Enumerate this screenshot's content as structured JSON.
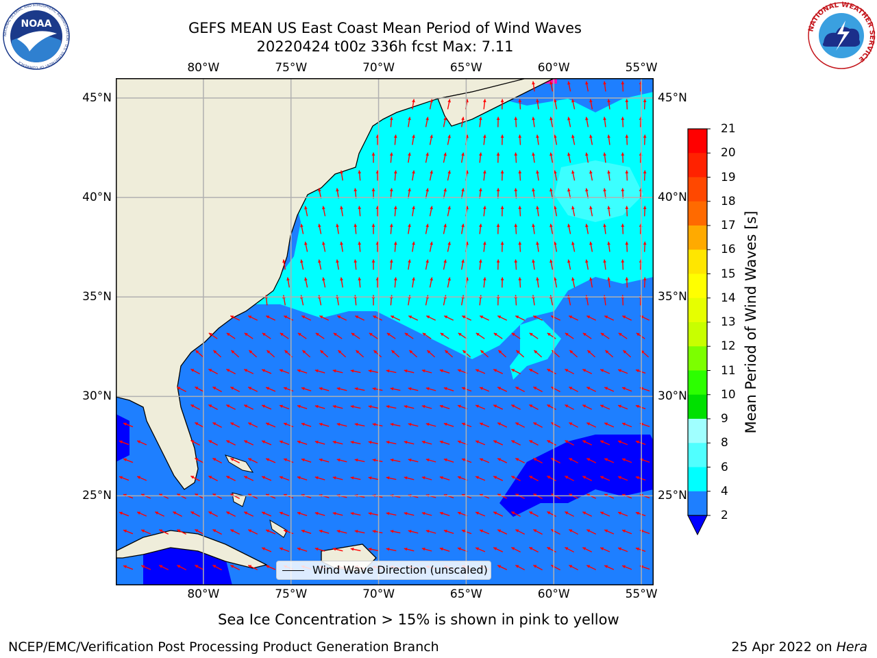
{
  "header": {
    "title_line1": "GEFS MEAN US East Coast Mean Period of Wind Waves",
    "title_line2": "20220424 t00z 336h fcst   Max: 7.11"
  },
  "logos": {
    "left_logo_text": "NOAA",
    "left_logo_ring_text": "NATIONAL OCEANIC AND ATMOSPHERIC ADMINISTRATION · U.S. DEPARTMENT OF COMMERCE",
    "right_logo_ring_text": "NATIONAL WEATHER SERVICE"
  },
  "map": {
    "lon_ticks": [
      "80°W",
      "75°W",
      "70°W",
      "65°W",
      "60°W",
      "55°W"
    ],
    "lat_ticks": [
      "45°N",
      "40°N",
      "35°N",
      "30°N",
      "25°N"
    ],
    "lon_values": [
      -80,
      -75,
      -70,
      -65,
      -60,
      -55
    ],
    "lat_values": [
      45,
      40,
      35,
      30,
      25
    ],
    "extent": {
      "lon_min": -85,
      "lon_max": -54.3,
      "lat_min": 20.5,
      "lat_max": 46
    },
    "land_color": "#efedda",
    "ocean_colors": {
      "band_2_4": "#1e7fff",
      "band_4_6": "#00ffff",
      "band_6_8": "#3cffff",
      "below_2": "#0000ff",
      "ice": "#ff10b0"
    },
    "arrow_color": "#ff0000",
    "legend_label": "Wind Wave Direction (unscaled)"
  },
  "colorbar": {
    "label": "Mean Period of Wind Waves [s]",
    "ticks": [
      "21",
      "20",
      "19",
      "18",
      "17",
      "16",
      "15",
      "14",
      "13",
      "12",
      "11",
      "10",
      "9",
      "8",
      "6",
      "4",
      "2"
    ],
    "colors": [
      "#ff0000",
      "#ff2200",
      "#ff4800",
      "#ff6a00",
      "#ff8c00",
      "#ffaa00",
      "#ffe600",
      "#ffff00",
      "#e6ff00",
      "#c8ff00",
      "#7cff00",
      "#2cff00",
      "#00e000",
      "#50ff70",
      "#a0ffff",
      "#50ffff",
      "#00ffff",
      "#1e7fff"
    ],
    "extend_color": "#0000ff"
  },
  "footer": {
    "caption": "Sea Ice Concentration > 15% is shown in pink to yellow",
    "credit": "NCEP/EMC/Verification Post Processing Product Generation Branch",
    "date": "25 Apr 2022 on",
    "host": "Hera"
  }
}
